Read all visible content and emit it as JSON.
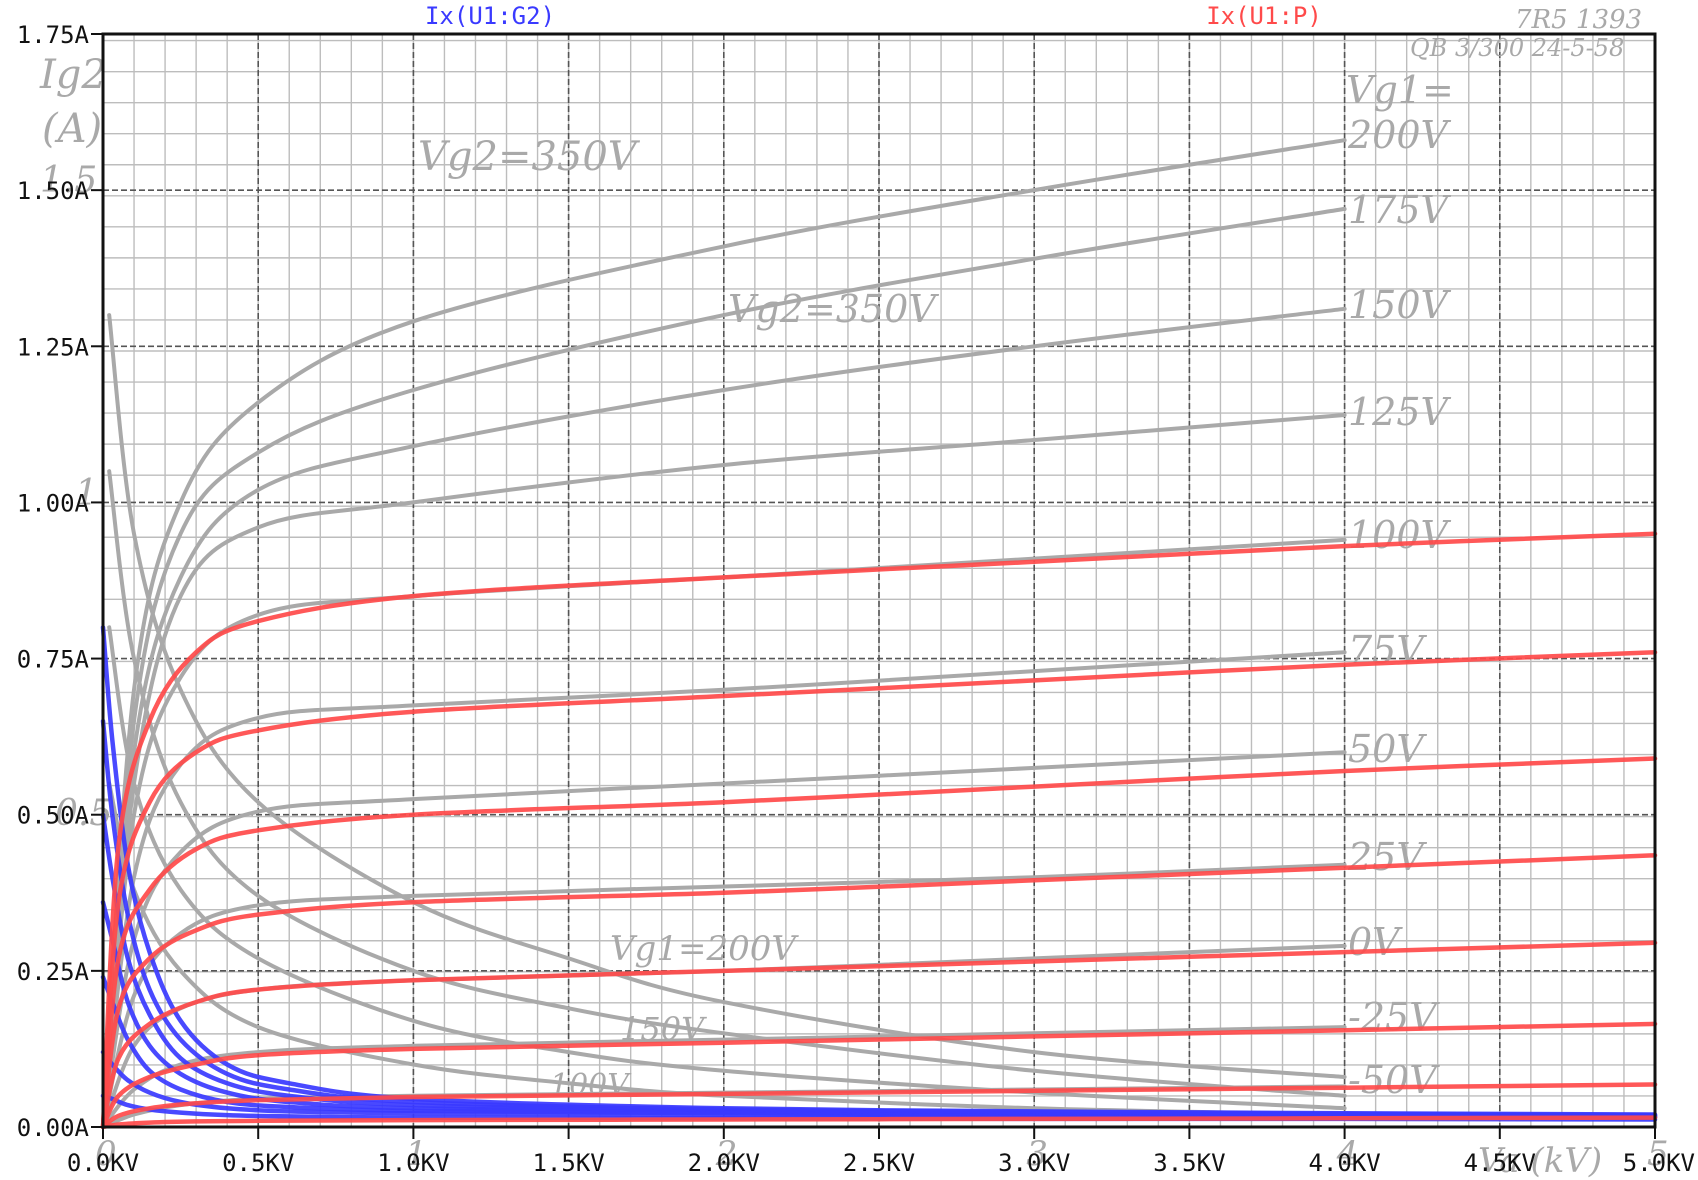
{
  "chart_data": {
    "type": "line",
    "title": "",
    "xlabel": "",
    "ylabel": "",
    "xlim": [
      0,
      5
    ],
    "ylim": [
      0,
      1.75
    ],
    "x_ticks": [
      0,
      0.5,
      1.0,
      1.5,
      2.0,
      2.5,
      3.0,
      3.5,
      4.0,
      4.5,
      5.0
    ],
    "x_tick_labels": [
      "0.0KV",
      "0.5KV",
      "1.0KV",
      "1.5KV",
      "2.0KV",
      "2.5KV",
      "3.0KV",
      "3.5KV",
      "4.0KV",
      "4.5KV",
      "5.0KV"
    ],
    "y_ticks": [
      0,
      0.25,
      0.5,
      0.75,
      1.0,
      1.25,
      1.5,
      1.75
    ],
    "y_tick_labels": [
      "0.00A",
      "0.25A",
      "0.50A",
      "0.75A",
      "1.00A",
      "1.25A",
      "1.50A",
      "1.75A"
    ],
    "grid": true,
    "legend": [
      {
        "label": "Ix(U1:G2)",
        "color": "#3a3aff",
        "position": "top-left"
      },
      {
        "label": "Ix(U1:P)",
        "color": "#ff4a4a",
        "position": "top-right"
      }
    ],
    "series": [
      {
        "name": "Ix(U1:P)",
        "color": "#ff4a4a",
        "family": "plate",
        "x": [
          0,
          0.05,
          0.15,
          0.3,
          0.5,
          1.0,
          2.0,
          3.0,
          4.0,
          5.0
        ],
        "values": [
          0.0,
          0.45,
          0.65,
          0.76,
          0.81,
          0.85,
          0.88,
          0.905,
          0.93,
          0.95
        ]
      },
      {
        "name": "Ix(U1:P)",
        "color": "#ff4a4a",
        "family": "plate",
        "x": [
          0,
          0.05,
          0.15,
          0.3,
          0.5,
          1.0,
          2.0,
          3.0,
          4.0,
          5.0
        ],
        "values": [
          0.0,
          0.36,
          0.52,
          0.6,
          0.635,
          0.665,
          0.69,
          0.715,
          0.74,
          0.76
        ]
      },
      {
        "name": "Ix(U1:P)",
        "color": "#ff4a4a",
        "family": "plate",
        "x": [
          0,
          0.05,
          0.15,
          0.3,
          0.5,
          1.0,
          2.0,
          3.0,
          4.0,
          5.0
        ],
        "values": [
          0.0,
          0.27,
          0.38,
          0.445,
          0.475,
          0.5,
          0.52,
          0.545,
          0.57,
          0.59
        ]
      },
      {
        "name": "Ix(U1:P)",
        "color": "#ff4a4a",
        "family": "plate",
        "x": [
          0,
          0.05,
          0.15,
          0.3,
          0.5,
          1.0,
          2.0,
          3.0,
          4.0,
          5.0
        ],
        "values": [
          0.0,
          0.19,
          0.27,
          0.315,
          0.34,
          0.36,
          0.375,
          0.395,
          0.415,
          0.435
        ]
      },
      {
        "name": "Ix(U1:P)",
        "color": "#ff4a4a",
        "family": "plate",
        "x": [
          0,
          0.05,
          0.15,
          0.3,
          0.5,
          1.0,
          2.0,
          3.0,
          4.0,
          5.0
        ],
        "values": [
          0.0,
          0.11,
          0.165,
          0.2,
          0.22,
          0.235,
          0.25,
          0.265,
          0.28,
          0.295
        ]
      },
      {
        "name": "Ix(U1:P)",
        "color": "#ff4a4a",
        "family": "plate",
        "x": [
          0,
          0.05,
          0.15,
          0.3,
          0.5,
          1.0,
          2.0,
          3.0,
          4.0,
          5.0
        ],
        "values": [
          0.0,
          0.05,
          0.08,
          0.1,
          0.115,
          0.125,
          0.135,
          0.145,
          0.155,
          0.165
        ]
      },
      {
        "name": "Ix(U1:P)",
        "color": "#ff4a4a",
        "family": "plate",
        "x": [
          0,
          0.05,
          0.15,
          0.3,
          0.5,
          1.0,
          2.0,
          3.0,
          4.0,
          5.0
        ],
        "values": [
          0.0,
          0.018,
          0.03,
          0.038,
          0.043,
          0.048,
          0.053,
          0.058,
          0.063,
          0.068
        ]
      },
      {
        "name": "Ix(U1:P)",
        "color": "#ff4a4a",
        "family": "plate",
        "x": [
          0,
          0.05,
          0.15,
          0.3,
          0.5,
          1.0,
          2.0,
          3.0,
          4.0,
          5.0
        ],
        "values": [
          0.0,
          0.004,
          0.007,
          0.009,
          0.01,
          0.011,
          0.012,
          0.013,
          0.014,
          0.015
        ]
      },
      {
        "name": "Ix(U1:G2)",
        "color": "#3a3aff",
        "family": "screen",
        "x": [
          0,
          0.03,
          0.08,
          0.15,
          0.25,
          0.4,
          0.6,
          1.0,
          2.0,
          3.0,
          4.0,
          5.0
        ],
        "values": [
          0.8,
          0.62,
          0.42,
          0.28,
          0.17,
          0.1,
          0.07,
          0.045,
          0.03,
          0.025,
          0.022,
          0.02
        ]
      },
      {
        "name": "Ix(U1:G2)",
        "color": "#3a3aff",
        "family": "screen",
        "x": [
          0,
          0.03,
          0.08,
          0.15,
          0.25,
          0.4,
          0.6,
          1.0,
          2.0,
          3.0,
          4.0,
          5.0
        ],
        "values": [
          0.65,
          0.5,
          0.34,
          0.22,
          0.14,
          0.085,
          0.06,
          0.04,
          0.028,
          0.024,
          0.021,
          0.019
        ]
      },
      {
        "name": "Ix(U1:G2)",
        "color": "#3a3aff",
        "family": "screen",
        "x": [
          0,
          0.03,
          0.08,
          0.15,
          0.25,
          0.4,
          0.6,
          1.0,
          2.0,
          3.0,
          4.0,
          5.0
        ],
        "values": [
          0.5,
          0.4,
          0.27,
          0.18,
          0.11,
          0.07,
          0.05,
          0.035,
          0.026,
          0.022,
          0.02,
          0.018
        ]
      },
      {
        "name": "Ix(U1:G2)",
        "color": "#3a3aff",
        "family": "screen",
        "x": [
          0,
          0.03,
          0.08,
          0.15,
          0.25,
          0.4,
          0.6,
          1.0,
          2.0,
          3.0,
          4.0,
          5.0
        ],
        "values": [
          0.36,
          0.3,
          0.2,
          0.13,
          0.085,
          0.055,
          0.04,
          0.03,
          0.024,
          0.02,
          0.018,
          0.017
        ]
      },
      {
        "name": "Ix(U1:G2)",
        "color": "#3a3aff",
        "family": "screen",
        "x": [
          0,
          0.03,
          0.08,
          0.15,
          0.25,
          0.4,
          0.6,
          1.0,
          2.0,
          3.0,
          4.0,
          5.0
        ],
        "values": [
          0.24,
          0.2,
          0.14,
          0.09,
          0.06,
          0.04,
          0.032,
          0.026,
          0.022,
          0.019,
          0.017,
          0.016
        ]
      },
      {
        "name": "Ix(U1:G2)",
        "color": "#3a3aff",
        "family": "screen",
        "x": [
          0,
          0.03,
          0.08,
          0.15,
          0.25,
          0.4,
          0.6,
          1.0,
          2.0,
          3.0,
          4.0,
          5.0
        ],
        "values": [
          0.12,
          0.1,
          0.075,
          0.055,
          0.04,
          0.03,
          0.025,
          0.022,
          0.019,
          0.017,
          0.016,
          0.015
        ]
      },
      {
        "name": "Ix(U1:G2)",
        "color": "#3a3aff",
        "family": "screen",
        "x": [
          0,
          0.03,
          0.08,
          0.15,
          0.25,
          0.4,
          0.6,
          1.0,
          2.0,
          3.0,
          4.0,
          5.0
        ],
        "values": [
          0.05,
          0.045,
          0.035,
          0.028,
          0.023,
          0.019,
          0.017,
          0.015,
          0.014,
          0.013,
          0.013,
          0.012
        ]
      }
    ],
    "background_datasheet": {
      "color": "#a9a9a9",
      "curve_labels": [
        "Vg1=",
        "200V",
        "175V",
        "150V",
        "125V",
        "100V",
        "75V",
        "50V",
        "25V",
        "0V",
        "-25V",
        "-50V"
      ],
      "annotations": [
        "Vg2=350V",
        "Vg2=350V",
        "Vg1=200V",
        "150V",
        "100V",
        "Ig2",
        "(A)",
        "1.5",
        "1",
        "0.5",
        "Va (kV)",
        "7R5 1393",
        "QB 3/300 24-5-58"
      ],
      "x_ticks": [
        "0",
        "1",
        "2",
        "3",
        "4",
        "5"
      ],
      "curves": [
        {
          "x": [
            0,
            0.1,
            0.25,
            0.5,
            1.0,
            2.0,
            3.0,
            4.0
          ],
          "values": [
            0.0,
            0.7,
            1.0,
            1.16,
            1.29,
            1.41,
            1.5,
            1.58
          ]
        },
        {
          "x": [
            0,
            0.1,
            0.25,
            0.5,
            1.0,
            2.0,
            3.0,
            4.0
          ],
          "values": [
            0.0,
            0.65,
            0.95,
            1.08,
            1.18,
            1.3,
            1.39,
            1.47
          ]
        },
        {
          "x": [
            0,
            0.1,
            0.25,
            0.5,
            1.0,
            2.0,
            3.0,
            4.0
          ],
          "values": [
            0.0,
            0.6,
            0.88,
            1.02,
            1.09,
            1.18,
            1.25,
            1.31
          ]
        },
        {
          "x": [
            0,
            0.1,
            0.25,
            0.5,
            1.0,
            2.0,
            3.0,
            4.0
          ],
          "values": [
            0.0,
            0.55,
            0.85,
            0.96,
            1.0,
            1.06,
            1.1,
            1.14
          ]
        },
        {
          "x": [
            0,
            0.1,
            0.25,
            0.5,
            1.0,
            2.0,
            3.0,
            4.0
          ],
          "values": [
            0.0,
            0.5,
            0.72,
            0.82,
            0.85,
            0.88,
            0.91,
            0.94
          ]
        },
        {
          "x": [
            0,
            0.1,
            0.25,
            0.5,
            1.0,
            2.0,
            3.0,
            4.0
          ],
          "values": [
            0.0,
            0.4,
            0.58,
            0.655,
            0.675,
            0.7,
            0.73,
            0.76
          ]
        },
        {
          "x": [
            0,
            0.1,
            0.25,
            0.5,
            1.0,
            2.0,
            3.0,
            4.0
          ],
          "values": [
            0.0,
            0.3,
            0.44,
            0.505,
            0.525,
            0.55,
            0.575,
            0.6
          ]
        },
        {
          "x": [
            0,
            0.1,
            0.25,
            0.5,
            1.0,
            2.0,
            3.0,
            4.0
          ],
          "values": [
            0.0,
            0.21,
            0.31,
            0.355,
            0.37,
            0.385,
            0.4,
            0.42
          ]
        },
        {
          "x": [
            0,
            0.1,
            0.25,
            0.5,
            1.0,
            2.0,
            3.0,
            4.0
          ],
          "values": [
            0.0,
            0.13,
            0.19,
            0.22,
            0.235,
            0.25,
            0.27,
            0.29
          ]
        },
        {
          "x": [
            0,
            0.1,
            0.25,
            0.5,
            1.0,
            2.0,
            3.0,
            4.0
          ],
          "values": [
            0.0,
            0.06,
            0.1,
            0.12,
            0.13,
            0.14,
            0.15,
            0.16
          ]
        },
        {
          "x": [
            0,
            0.1,
            0.25,
            0.5,
            1.0,
            2.0,
            3.0,
            4.0
          ],
          "values": [
            0.0,
            0.02,
            0.035,
            0.045,
            0.05,
            0.055,
            0.06,
            0.065
          ]
        },
        {
          "x": [
            0.02,
            0.1,
            0.25,
            0.5,
            1.0,
            1.5,
            2.0,
            3.0,
            4.0
          ],
          "values": [
            1.3,
            0.95,
            0.7,
            0.52,
            0.36,
            0.27,
            0.2,
            0.12,
            0.08
          ]
        },
        {
          "x": [
            0.02,
            0.1,
            0.25,
            0.5,
            1.0,
            1.5,
            2.0,
            3.0,
            4.0
          ],
          "values": [
            1.05,
            0.75,
            0.52,
            0.37,
            0.25,
            0.19,
            0.15,
            0.09,
            0.05
          ]
        },
        {
          "x": [
            0.02,
            0.1,
            0.25,
            0.5,
            1.0,
            1.5,
            2.0,
            3.0,
            4.0
          ],
          "values": [
            0.8,
            0.55,
            0.38,
            0.27,
            0.17,
            0.12,
            0.09,
            0.055,
            0.03
          ]
        },
        {
          "x": [
            0.02,
            0.1,
            0.25,
            0.5,
            1.0,
            1.5,
            2.0,
            3.0,
            4.0
          ],
          "values": [
            0.55,
            0.38,
            0.25,
            0.16,
            0.1,
            0.07,
            0.05,
            0.03,
            0.02
          ]
        }
      ]
    }
  }
}
